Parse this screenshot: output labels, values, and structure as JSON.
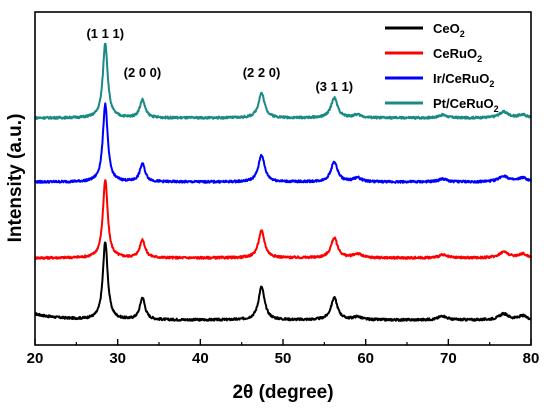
{
  "chart_data": {
    "type": "line",
    "xlabel_prefix": "2",
    "xlabel_symbol": "θ",
    "xlabel_suffix": " (degree)",
    "ylabel": "Intensity (a.u.)",
    "xlim": [
      20,
      80
    ],
    "x_ticks": [
      "20",
      "30",
      "40",
      "50",
      "60",
      "70",
      "80"
    ],
    "grid": false,
    "legend_position": "top-right",
    "peak_labels": [
      {
        "text": "(1 1 1)",
        "x": 28.5
      },
      {
        "text": "(2 0 0)",
        "x": 33.0
      },
      {
        "text": "(2 2 0)",
        "x": 47.4
      },
      {
        "text": "(3 1 1)",
        "x": 56.2
      }
    ],
    "peaks_2theta": [
      28.5,
      33.0,
      47.4,
      56.2,
      59.0,
      69.3,
      76.7,
      79.0
    ],
    "series": [
      {
        "name_main": "CeO",
        "name_sub": "2",
        "color": "#000000",
        "offset": 0
      },
      {
        "name_main": "CeRuO",
        "name_sub": "2",
        "color": "#ff0000",
        "offset": 1
      },
      {
        "name_main": "Ir/CeRuO",
        "name_sub": "2",
        "color": "#0000ff",
        "offset": 2
      },
      {
        "name_main": "Pt/CeRuO",
        "name_sub": "2",
        "color": "#1a8a84",
        "offset": 3
      }
    ]
  }
}
